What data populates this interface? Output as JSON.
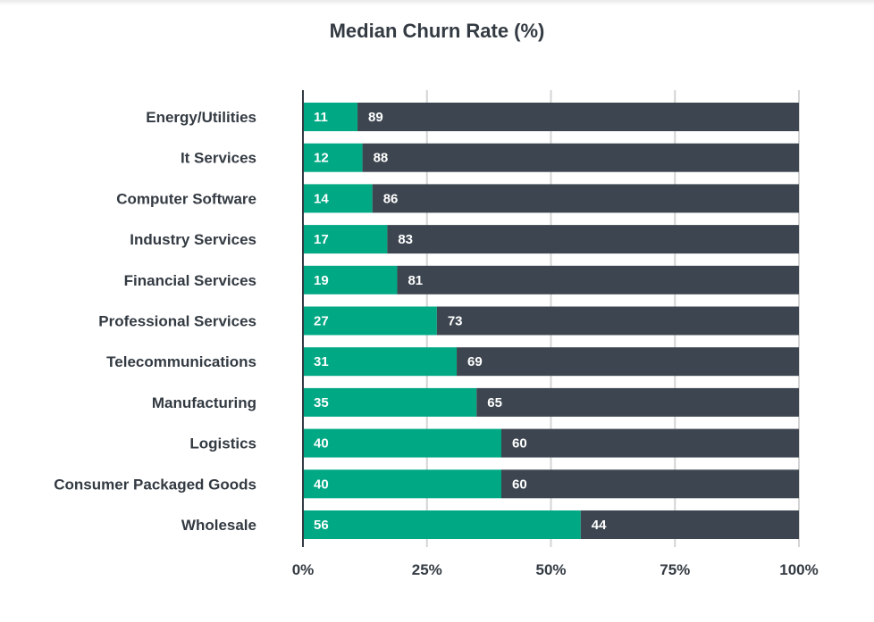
{
  "chart_data": {
    "type": "bar",
    "orientation": "horizontal",
    "stacked": true,
    "title": "Median Churn Rate (%)",
    "categories": [
      "Energy/Utilities",
      "It Services",
      "Computer Software",
      "Industry Services",
      "Financial Services",
      "Professional Services",
      "Telecommunications",
      "Manufacturing",
      "Logistics",
      "Consumer Packaged Goods",
      "Wholesale"
    ],
    "series": [
      {
        "values": [
          11,
          12,
          14,
          17,
          19,
          27,
          31,
          35,
          40,
          40,
          56
        ],
        "color": "#00a884"
      },
      {
        "values": [
          89,
          88,
          86,
          83,
          81,
          73,
          69,
          65,
          60,
          60,
          44
        ],
        "color": "#3d4650"
      }
    ],
    "xlim": [
      0,
      100
    ],
    "xticks": [
      0,
      25,
      50,
      75,
      100
    ],
    "xtick_labels": [
      "0%",
      "25%",
      "50%",
      "75%",
      "100%"
    ],
    "grid": "vertical",
    "legend": "none"
  }
}
